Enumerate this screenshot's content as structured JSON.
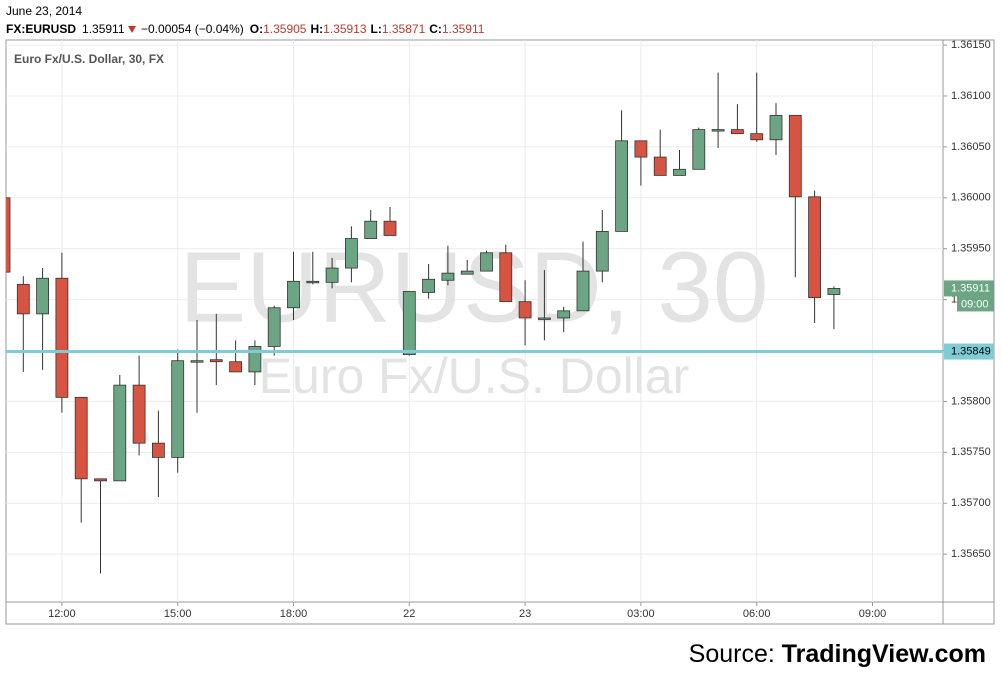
{
  "chart_data": {
    "type": "candlestick",
    "header": {
      "date": "June 23, 2014",
      "symbol": "FX:EURUSD",
      "last": "1.35911",
      "change": "−0.00054 (−0.04%)",
      "ohlc": [
        {
          "label": "O:",
          "value": "1.35905"
        },
        {
          "label": "H:",
          "value": "1.35913"
        },
        {
          "label": "L:",
          "value": "1.35871"
        },
        {
          "label": "C:",
          "value": "1.35911"
        }
      ]
    },
    "legend_title": "Euro Fx/U.S. Dollar, 30, FX",
    "watermark": "EURUSD, 30",
    "watermark_subtitle": "Euro Fx/U.S. Dollar",
    "source_prefix": "Source:",
    "source_name": "TradingView.com",
    "up_color": "#6ba583",
    "down_color": "#d75442",
    "grid": true,
    "categories": [
      null,
      null,
      null,
      "12:00",
      null,
      null,
      null,
      null,
      null,
      "15:00",
      null,
      null,
      null,
      null,
      null,
      "18:00",
      null,
      null,
      null,
      null,
      null,
      "22",
      null,
      null,
      null,
      null,
      null,
      "23",
      null,
      null,
      null,
      null,
      null,
      "03:00",
      null,
      null,
      null,
      null,
      null,
      "06:00",
      null,
      null,
      null,
      null,
      null,
      "09:00",
      null,
      null,
      null
    ],
    "open": [
      1.36,
      1.35915,
      1.35886,
      1.35921,
      1.35804,
      1.35724,
      1.35722,
      1.35816,
      1.35759,
      1.35745,
      1.3584,
      1.35841,
      1.35839,
      1.35829,
      1.35854,
      1.35892,
      1.35917,
      1.35917,
      1.35931,
      1.3596,
      1.35977,
      1.35846,
      1.35907,
      1.35919,
      1.35925,
      1.35928,
      1.35946,
      1.35898,
      1.35882,
      1.35882,
      1.35889,
      1.35928,
      1.35967,
      1.36056,
      1.3604,
      1.36022,
      1.36028,
      1.36067,
      1.36067,
      1.36063,
      1.36057,
      1.36081,
      1.36001,
      1.35905,
      null,
      null,
      null,
      null,
      null
    ],
    "high": [
      1.36,
      1.35923,
      1.35931,
      1.35946,
      1.35804,
      1.35724,
      1.35826,
      1.35845,
      1.35791,
      1.35851,
      1.3588,
      1.35886,
      1.3586,
      1.3586,
      1.35894,
      1.35947,
      1.35947,
      1.35941,
      1.35972,
      1.35988,
      1.35991,
      1.35908,
      1.35935,
      1.35953,
      1.35939,
      1.35948,
      1.35954,
      1.35919,
      1.35929,
      1.35893,
      1.35957,
      1.35988,
      1.36086,
      1.36056,
      1.36067,
      1.36047,
      1.36069,
      1.36123,
      1.36092,
      1.36123,
      1.36093,
      1.36081,
      1.36007,
      1.35913,
      null,
      null,
      null,
      null,
      null
    ],
    "low": [
      1.35915,
      1.35829,
      1.35831,
      1.35789,
      1.35681,
      1.35631,
      1.35722,
      1.35747,
      1.35706,
      1.3573,
      1.35789,
      1.35816,
      1.35829,
      1.35816,
      1.35845,
      1.3588,
      1.35915,
      1.35911,
      1.35917,
      1.3596,
      1.35963,
      1.35845,
      1.35901,
      1.35914,
      1.35925,
      1.35928,
      1.35898,
      1.35855,
      1.3586,
      1.35868,
      1.35889,
      1.35917,
      1.35967,
      1.36012,
      1.36022,
      1.36022,
      1.36028,
      1.36049,
      1.36063,
      1.36055,
      1.36042,
      1.35922,
      1.35877,
      1.35871,
      null,
      null,
      null,
      null,
      null
    ],
    "close": [
      1.35927,
      1.35886,
      1.35921,
      1.35804,
      1.35724,
      1.35722,
      1.35816,
      1.35759,
      1.35745,
      1.3584,
      1.3584,
      1.35839,
      1.35829,
      1.35854,
      1.35892,
      1.35918,
      1.35918,
      1.35931,
      1.3596,
      1.35977,
      1.35963,
      1.35908,
      1.3592,
      1.35926,
      1.35928,
      1.35946,
      1.35898,
      1.35882,
      1.35882,
      1.35889,
      1.35928,
      1.35967,
      1.36056,
      1.3604,
      1.36022,
      1.36028,
      1.36067,
      1.36067,
      1.36063,
      1.36057,
      1.36081,
      1.36001,
      1.35902,
      1.35911,
      null,
      null,
      null,
      null,
      null
    ],
    "ylim": [
      1.35603,
      1.36155
    ],
    "yticks": [
      {
        "value": 1.3565,
        "label": "1.35650"
      },
      {
        "value": 1.357,
        "label": "1.35700"
      },
      {
        "value": 1.3575,
        "label": "1.35750"
      },
      {
        "value": 1.358,
        "label": "1.35800"
      },
      {
        "value": 1.3585,
        "label": "1.35850"
      },
      {
        "value": 1.359,
        "label": "1.35900"
      },
      {
        "value": 1.3595,
        "label": "1.35950"
      },
      {
        "value": 1.36,
        "label": "1.36000"
      },
      {
        "value": 1.3605,
        "label": "1.36050"
      },
      {
        "value": 1.361,
        "label": "1.36100"
      },
      {
        "value": 1.3615,
        "label": "1.36150"
      }
    ],
    "last_price": {
      "value": 1.35911,
      "label": "1.35911",
      "time": "09:00",
      "color": "#6ba583"
    },
    "hline": {
      "value": 1.35849,
      "label": "1.35849",
      "color": "#80ccd6"
    }
  }
}
